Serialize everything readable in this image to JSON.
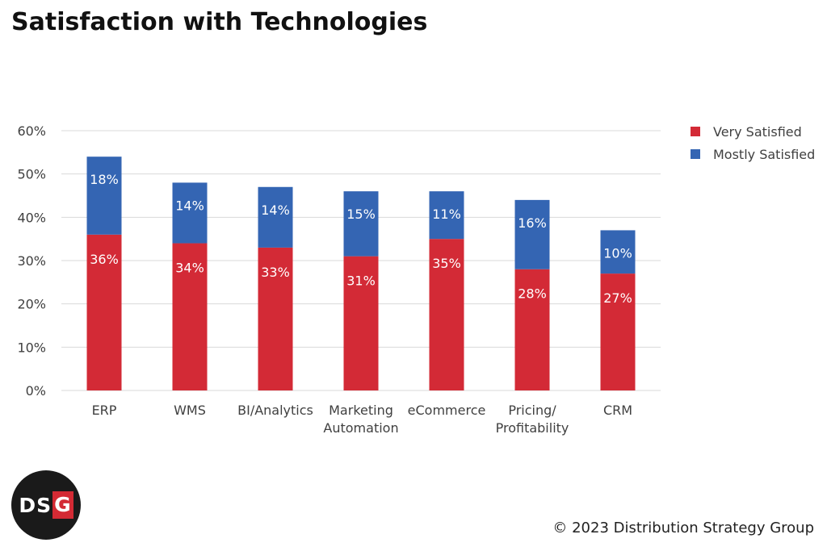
{
  "title": "Satisfaction with Technologies",
  "copyright": "© 2023 Distribution Strategy Group",
  "logo": {
    "text_main": "DS",
    "text_accent": "G"
  },
  "colors": {
    "very_satisfied": "#d32a36",
    "mostly_satisfied": "#3465b3",
    "gridline": "#d9d9d9",
    "text": "#404040"
  },
  "chart_data": {
    "type": "bar",
    "stacked": true,
    "title": "Satisfaction with Technologies",
    "xlabel": "",
    "ylabel": "",
    "ylim": [
      0,
      60
    ],
    "yticks": [
      0,
      10,
      20,
      30,
      40,
      50,
      60
    ],
    "ytick_labels": [
      "0%",
      "10%",
      "20%",
      "30%",
      "40%",
      "50%",
      "60%"
    ],
    "grid": true,
    "legend_position": "top-right",
    "categories": [
      [
        "ERP"
      ],
      [
        "WMS"
      ],
      [
        "BI/Analytics"
      ],
      [
        "Marketing",
        "Automation"
      ],
      [
        "eCommerce"
      ],
      [
        "Pricing/",
        "Profitability"
      ],
      [
        "CRM"
      ]
    ],
    "series": [
      {
        "name": "Very Satisfied",
        "color": "#d32a36",
        "values": [
          36,
          34,
          33,
          31,
          35,
          28,
          27
        ],
        "labels": [
          "36%",
          "34%",
          "33%",
          "31%",
          "35%",
          "28%",
          "27%"
        ]
      },
      {
        "name": "Mostly Satisfied",
        "color": "#3465b3",
        "values": [
          18,
          14,
          14,
          15,
          11,
          16,
          10
        ],
        "labels": [
          "18%",
          "14%",
          "14%",
          "15%",
          "11%",
          "16%",
          "10%"
        ]
      }
    ]
  }
}
